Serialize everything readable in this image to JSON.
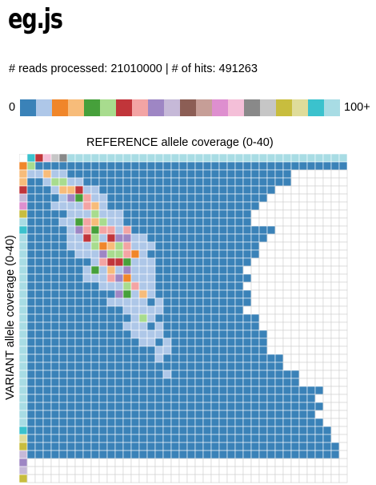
{
  "app": {
    "title": "eg.js"
  },
  "status": {
    "text": "# reads processed: 21010000 | # of hits: 491263"
  },
  "legend": {
    "min_label": "0",
    "max_label": "100+",
    "colors": [
      "#3a82b8",
      "#aec7e8",
      "#f0862a",
      "#f7bc7a",
      "#46a03b",
      "#a8dc8e",
      "#c1353a",
      "#f3a4a4",
      "#9e86c4",
      "#c6b9d8",
      "#8c5e55",
      "#c69e97",
      "#de8fcf",
      "#f4bfd8",
      "#898989",
      "#c6c6c6",
      "#c8bd3e",
      "#dfdc9a",
      "#3bc2cd",
      "#a8dce4"
    ]
  },
  "chart_data": {
    "type": "heatmap",
    "title": "",
    "xlabel": "REFERENCE allele coverage (0-40)",
    "ylabel": "VARIANT allele coverage (0-40)",
    "xlim": [
      0,
      40
    ],
    "ylim": [
      0,
      40
    ],
    "color_scale": {
      "min": 0,
      "max": "100+",
      "bins": 20
    },
    "row_extent": [
      [
        1,
        40
      ],
      [
        0,
        40
      ],
      [
        0,
        33
      ],
      [
        0,
        33
      ],
      [
        0,
        31
      ],
      [
        0,
        30
      ],
      [
        0,
        29
      ],
      [
        0,
        28
      ],
      [
        0,
        28
      ],
      [
        0,
        31
      ],
      [
        0,
        30
      ],
      [
        0,
        29
      ],
      [
        0,
        29
      ],
      [
        0,
        28
      ],
      [
        0,
        27
      ],
      [
        0,
        28
      ],
      [
        0,
        27
      ],
      [
        0,
        28
      ],
      [
        0,
        28
      ],
      [
        0,
        27
      ],
      [
        0,
        29
      ],
      [
        0,
        29
      ],
      [
        0,
        30
      ],
      [
        0,
        30
      ],
      [
        0,
        30
      ],
      [
        0,
        32
      ],
      [
        0,
        32
      ],
      [
        0,
        34
      ],
      [
        0,
        34
      ],
      [
        0,
        37
      ],
      [
        0,
        36
      ],
      [
        0,
        37
      ],
      [
        0,
        36
      ],
      [
        0,
        37
      ],
      [
        0,
        38
      ],
      [
        0,
        38
      ],
      [
        0,
        39
      ],
      [
        0,
        39
      ],
      [
        0,
        0
      ],
      [
        0,
        0
      ],
      [
        0,
        0
      ]
    ],
    "ridge_offset": [
      0,
      0,
      3,
      5,
      6,
      7,
      8,
      9,
      9,
      10,
      11,
      11,
      11,
      12,
      12,
      12,
      13,
      14,
      14,
      15,
      15,
      15,
      16,
      16,
      17,
      17,
      17,
      18,
      18,
      18,
      19,
      19,
      19,
      19,
      19,
      20,
      20,
      20,
      20,
      20,
      20
    ]
  }
}
